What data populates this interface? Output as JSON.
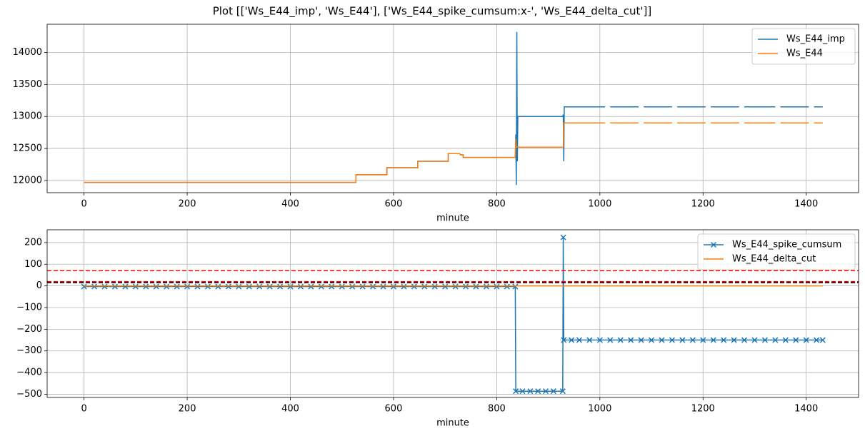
{
  "title": "Plot [['Ws_E44_imp', 'Ws_E44'], ['Ws_E44_spike_cumsum:x-', 'Ws_E44_delta_cut']]",
  "chart_data": [
    {
      "type": "line",
      "x_label": "minute",
      "xlim": [
        -71.5,
        1501.5
      ],
      "ylim": [
        11810,
        14440
      ],
      "xticks": [
        0,
        200,
        400,
        600,
        800,
        1000,
        1200,
        1400
      ],
      "yticks": [
        12000,
        12500,
        13000,
        13500,
        14000
      ],
      "grid": true,
      "legend": "upper right",
      "x": [
        0,
        527,
        527,
        587,
        587,
        647,
        647,
        706,
        706,
        728,
        730,
        735,
        735,
        836,
        837,
        838,
        839,
        840,
        841,
        842,
        928,
        929,
        930,
        931,
        932,
        1010,
        null,
        1020,
        1075,
        null,
        1085,
        1140,
        null,
        1150,
        1205,
        null,
        1215,
        1270,
        null,
        1280,
        1340,
        null,
        1350,
        1405,
        null,
        1415,
        1432
      ],
      "series": [
        {
          "name": "Ws_E44_imp",
          "color": "#1f77b4",
          "values": [
            11970,
            11970,
            12090,
            12090,
            12200,
            12200,
            12300,
            12300,
            12420,
            12420,
            12400,
            12400,
            12360,
            12360,
            12720,
            11930,
            14320,
            12300,
            13000,
            13000,
            13000,
            13030,
            12300,
            13150,
            13150,
            13150,
            null,
            13150,
            13150,
            null,
            13150,
            13150,
            null,
            13150,
            13150,
            null,
            13150,
            13150,
            null,
            13150,
            13150,
            null,
            13150,
            13150,
            null,
            13150,
            13150
          ]
        },
        {
          "name": "Ws_E44",
          "color": "#ff7f0e",
          "values": [
            11970,
            11970,
            12090,
            12090,
            12200,
            12200,
            12300,
            12300,
            12420,
            12420,
            12400,
            12400,
            12360,
            12360,
            12650,
            12520,
            12520,
            12520,
            12520,
            12520,
            12520,
            12520,
            12900,
            12900,
            12900,
            12900,
            null,
            12900,
            12900,
            null,
            12900,
            12900,
            null,
            12900,
            12900,
            null,
            12900,
            12900,
            null,
            12900,
            12900,
            null,
            12900,
            12900,
            null,
            12900,
            12900
          ]
        }
      ]
    },
    {
      "type": "line",
      "x_label": "minute",
      "xlim": [
        -71.5,
        1501.5
      ],
      "ylim": [
        -515,
        259
      ],
      "xticks": [
        0,
        200,
        400,
        600,
        800,
        1000,
        1200,
        1400
      ],
      "yticks": [
        {
          "value": -500,
          "label": "−500"
        },
        {
          "value": -400,
          "label": "−400"
        },
        {
          "value": -300,
          "label": "−300"
        },
        {
          "value": -200,
          "label": "−200"
        },
        {
          "value": -100,
          "label": "−100"
        },
        0,
        100,
        200
      ],
      "grid": true,
      "legend": "upper right",
      "hlines": [
        {
          "value": 70,
          "color": "#ff0000",
          "style": "dashed"
        },
        {
          "value": 20,
          "color": "#ff0000",
          "style": "dashed"
        },
        {
          "value": 15,
          "color": "#000000",
          "style": "dashed"
        }
      ],
      "series": [
        {
          "name": "Ws_E44_spike_cumsum",
          "color": "#1f77b4",
          "marker": "x",
          "x": [
            0,
            20,
            40,
            60,
            80,
            100,
            120,
            140,
            160,
            180,
            200,
            220,
            240,
            260,
            280,
            300,
            320,
            340,
            360,
            380,
            400,
            420,
            440,
            460,
            480,
            500,
            520,
            540,
            560,
            580,
            600,
            620,
            640,
            660,
            680,
            700,
            720,
            740,
            760,
            780,
            800,
            820,
            836,
            837,
            850,
            865,
            880,
            895,
            910,
            928,
            929,
            930,
            945,
            960,
            980,
            1000,
            1020,
            1040,
            1060,
            1080,
            1100,
            1120,
            1140,
            1160,
            1180,
            1200,
            1220,
            1240,
            1260,
            1280,
            1300,
            1320,
            1340,
            1360,
            1380,
            1400,
            1420,
            1432
          ],
          "values": [
            -3,
            -3,
            -3,
            -3,
            -3,
            -3,
            -3,
            -3,
            -3,
            -3,
            -3,
            -3,
            -3,
            -3,
            -3,
            -3,
            -3,
            -3,
            -3,
            -3,
            -3,
            -3,
            -3,
            -3,
            -3,
            -3,
            -3,
            -3,
            -3,
            -3,
            -3,
            -3,
            -3,
            -3,
            -3,
            -3,
            -3,
            -3,
            -3,
            -3,
            -3,
            -3,
            -3,
            -486,
            -486,
            -486,
            -486,
            -486,
            -486,
            -486,
            224,
            -250,
            -250,
            -250,
            -250,
            -250,
            -250,
            -250,
            -250,
            -250,
            -250,
            -250,
            -250,
            -250,
            -250,
            -250,
            -250,
            -250,
            -250,
            -250,
            -250,
            -250,
            -250,
            -250,
            -250,
            -250,
            -250,
            -250
          ]
        },
        {
          "name": "Ws_E44_delta_cut",
          "color": "#ff7f0e",
          "x": [
            0,
            1432
          ],
          "values": [
            0,
            0
          ]
        }
      ]
    }
  ]
}
